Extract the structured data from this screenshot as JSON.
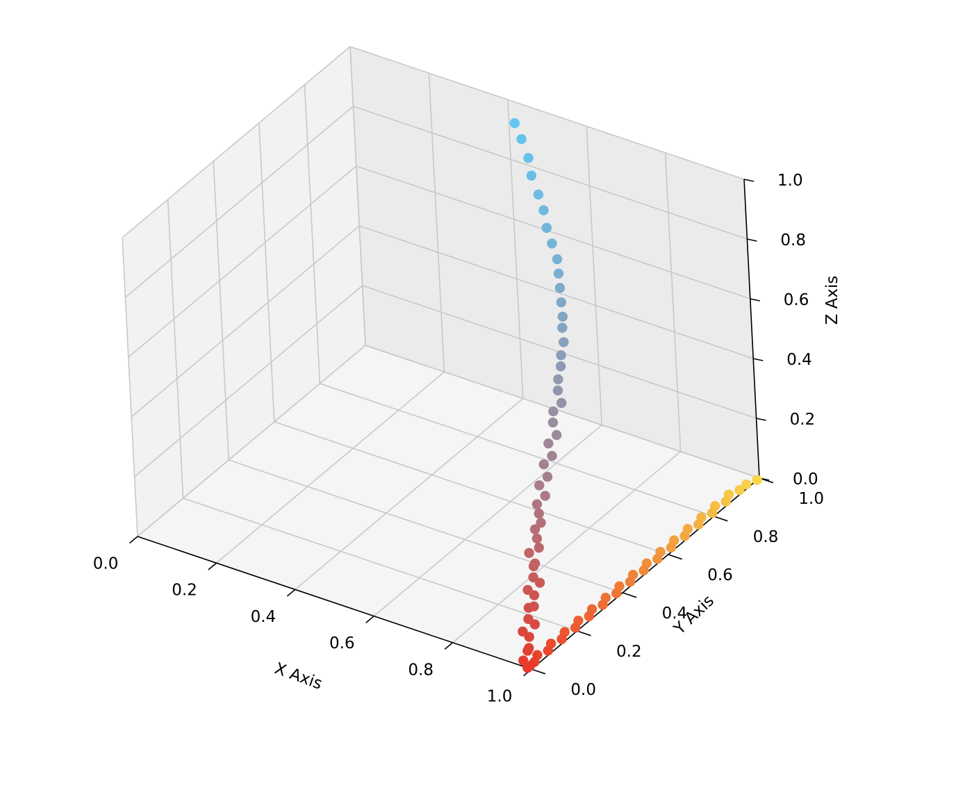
{
  "chart_data": {
    "type": "scatter",
    "projection": "3d",
    "title": "",
    "xlabel": "X Axis",
    "ylabel": "Y Axis",
    "zlabel": "Z Axis",
    "xlim": [
      0,
      1
    ],
    "ylim": [
      0,
      1
    ],
    "zlim": [
      0,
      1
    ],
    "grid": true,
    "xticks": [
      "0.0",
      "0.2",
      "0.4",
      "0.6",
      "0.8",
      "1.0"
    ],
    "yticks": [
      "0.0",
      "0.2",
      "0.4",
      "0.6",
      "0.8",
      "1.0"
    ],
    "zticks": [
      "0.0",
      "0.2",
      "0.4",
      "0.6",
      "0.8",
      "1.0"
    ],
    "series": [
      {
        "description_colors": "red at bottom to light blue at top",
        "color_start": "#e8392a",
        "color_end": "#62c7f2",
        "points": [
          [
            0.99,
            0.01,
            0.0
          ],
          [
            0.98,
            0.0,
            0.02
          ],
          [
            0.98,
            0.02,
            0.04
          ],
          [
            0.99,
            0.01,
            0.06
          ],
          [
            0.98,
            0.03,
            0.08
          ],
          [
            0.97,
            0.02,
            0.1
          ],
          [
            0.99,
            0.04,
            0.12
          ],
          [
            0.98,
            0.03,
            0.14
          ],
          [
            0.97,
            0.05,
            0.16
          ],
          [
            0.99,
            0.04,
            0.18
          ],
          [
            0.98,
            0.06,
            0.2
          ],
          [
            0.97,
            0.05,
            0.22
          ],
          [
            0.99,
            0.07,
            0.24
          ],
          [
            0.98,
            0.06,
            0.26
          ],
          [
            0.97,
            0.08,
            0.28
          ],
          [
            0.98,
            0.07,
            0.3
          ],
          [
            0.96,
            0.08,
            0.32
          ],
          [
            0.98,
            0.09,
            0.34
          ],
          [
            0.97,
            0.1,
            0.36
          ],
          [
            0.96,
            0.11,
            0.38
          ],
          [
            0.97,
            0.12,
            0.4
          ],
          [
            0.96,
            0.13,
            0.42
          ],
          [
            0.95,
            0.14,
            0.44
          ],
          [
            0.96,
            0.16,
            0.46
          ],
          [
            0.94,
            0.17,
            0.48
          ],
          [
            0.95,
            0.19,
            0.5
          ],
          [
            0.93,
            0.21,
            0.52
          ],
          [
            0.94,
            0.23,
            0.54
          ],
          [
            0.92,
            0.25,
            0.56
          ],
          [
            0.93,
            0.27,
            0.58
          ],
          [
            0.91,
            0.29,
            0.6
          ],
          [
            0.9,
            0.31,
            0.62
          ],
          [
            0.91,
            0.33,
            0.64
          ],
          [
            0.89,
            0.35,
            0.66
          ],
          [
            0.88,
            0.37,
            0.68
          ],
          [
            0.87,
            0.4,
            0.7
          ],
          [
            0.86,
            0.42,
            0.72
          ],
          [
            0.85,
            0.45,
            0.74
          ],
          [
            0.83,
            0.48,
            0.76
          ],
          [
            0.82,
            0.5,
            0.78
          ],
          [
            0.8,
            0.53,
            0.8
          ],
          [
            0.78,
            0.56,
            0.82
          ],
          [
            0.76,
            0.59,
            0.84
          ],
          [
            0.74,
            0.62,
            0.86
          ],
          [
            0.71,
            0.65,
            0.88
          ],
          [
            0.68,
            0.68,
            0.9
          ],
          [
            0.65,
            0.72,
            0.92
          ],
          [
            0.62,
            0.75,
            0.94
          ],
          [
            0.58,
            0.79,
            0.96
          ],
          [
            0.55,
            0.83,
            0.98
          ],
          [
            0.51,
            0.87,
            1.0
          ],
          [
            0.47,
            0.91,
            1.01
          ]
        ]
      },
      {
        "description_colors": "red at origin side to yellow at far side",
        "color_start": "#e8392a",
        "color_end": "#f8d64a",
        "points": [
          [
            0.99,
            0.0,
            0.0
          ],
          [
            0.99,
            0.03,
            0.0
          ],
          [
            0.98,
            0.06,
            0.0
          ],
          [
            0.99,
            0.09,
            0.0
          ],
          [
            0.98,
            0.12,
            0.0
          ],
          [
            0.99,
            0.15,
            0.0
          ],
          [
            0.98,
            0.18,
            0.0
          ],
          [
            0.99,
            0.21,
            0.0
          ],
          [
            0.98,
            0.24,
            0.0
          ],
          [
            0.99,
            0.27,
            0.0
          ],
          [
            0.98,
            0.3,
            0.0
          ],
          [
            0.99,
            0.33,
            0.0
          ],
          [
            0.98,
            0.36,
            0.0
          ],
          [
            0.99,
            0.39,
            0.0
          ],
          [
            0.98,
            0.42,
            0.0
          ],
          [
            0.99,
            0.45,
            0.0
          ],
          [
            0.98,
            0.48,
            0.0
          ],
          [
            0.99,
            0.51,
            0.0
          ],
          [
            0.98,
            0.54,
            0.0
          ],
          [
            0.99,
            0.57,
            0.0
          ],
          [
            0.98,
            0.6,
            0.0
          ],
          [
            0.99,
            0.63,
            0.0
          ],
          [
            0.98,
            0.66,
            0.0
          ],
          [
            0.99,
            0.69,
            0.0
          ],
          [
            0.98,
            0.72,
            0.0
          ],
          [
            0.99,
            0.75,
            0.0
          ],
          [
            0.98,
            0.78,
            0.0
          ],
          [
            0.99,
            0.81,
            0.0
          ],
          [
            0.98,
            0.84,
            0.0
          ],
          [
            0.99,
            0.87,
            0.0
          ],
          [
            0.98,
            0.9,
            0.0
          ],
          [
            0.99,
            0.93,
            0.0
          ],
          [
            0.99,
            0.96,
            0.0
          ],
          [
            1.0,
            0.99,
            0.0
          ]
        ]
      }
    ]
  }
}
